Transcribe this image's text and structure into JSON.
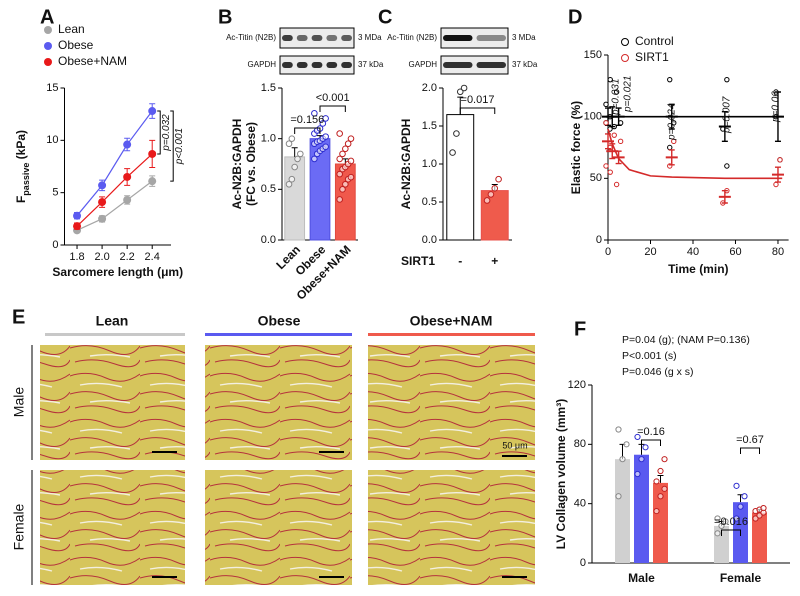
{
  "chart_data": [
    {
      "panel": "A",
      "type": "line",
      "xlabel": "Sarcomere length (μm)",
      "ylabel": "F",
      "ylabel_sub": "passive",
      "ylabel_unit": " (kPa)",
      "x": [
        1.8,
        2.0,
        2.2,
        2.4
      ],
      "xlim": [
        1.7,
        2.55
      ],
      "xticks": [
        1.8,
        {
          "value": 2,
          "label": "2.0"
        },
        2.2,
        2.4
      ],
      "ylim": [
        0,
        15
      ],
      "yticks": [
        0,
        5,
        10,
        15
      ],
      "series": [
        {
          "name": "Lean",
          "color": "#a6a6a6",
          "values": [
            1.4,
            2.5,
            4.3,
            6.1
          ],
          "errors": [
            0.2,
            0.3,
            0.4,
            0.5
          ]
        },
        {
          "name": "Obese",
          "color": "#5b5bf0",
          "values": [
            2.8,
            5.7,
            9.6,
            12.8
          ],
          "errors": [
            0.3,
            0.5,
            0.6,
            0.7
          ]
        },
        {
          "name": "Obese+NAM",
          "color": "#e8191a",
          "values": [
            1.8,
            4.1,
            6.5,
            8.7
          ],
          "errors": [
            0.3,
            0.5,
            0.8,
            1.3
          ]
        }
      ],
      "annotations": [
        "p=0.032",
        "p<0.001"
      ]
    },
    {
      "panel": "B",
      "type": "bar",
      "ylabel": "Ac-N2B:GAPDH",
      "ylabel2": "(FC vs. Obese)",
      "blot": {
        "band_label": "Ac-Titin (N2B)",
        "band_size": "3 MDa",
        "loading_label": "GAPDH",
        "loading_size": "37 kDa"
      },
      "categories": [
        "Lean",
        "Obese",
        "Obese+NAM"
      ],
      "values": [
        0.82,
        1.0,
        0.75
      ],
      "errors": [
        0.09,
        0.03,
        0.05
      ],
      "colors": [
        "#d9d9d9",
        "#6b6bf5",
        "#f0594c"
      ],
      "edge_colors": [
        "#bdbdbd",
        "#5050e0",
        "#e04a3e"
      ],
      "point_colors": [
        "#888888",
        "#2e2ed0",
        "#c02020"
      ],
      "points": [
        [
          0.55,
          0.6,
          0.72,
          0.8,
          0.85,
          0.95,
          1.0
        ],
        [
          0.8,
          0.85,
          0.88,
          0.9,
          0.92,
          0.95,
          0.97,
          0.98,
          1.0,
          1.02,
          1.05,
          1.08,
          1.1,
          1.15,
          1.2,
          1.25
        ],
        [
          0.4,
          0.5,
          0.55,
          0.6,
          0.62,
          0.65,
          0.7,
          0.72,
          0.75,
          0.78,
          0.8,
          0.85,
          0.9,
          0.95,
          1.0,
          1.05
        ]
      ],
      "ylim": [
        0,
        1.5
      ],
      "yticks": [
        {
          "value": 0,
          "label": "0.0"
        },
        0.5,
        {
          "value": 1,
          "label": "1.0"
        },
        1.5
      ],
      "annotations": [
        "=0.156",
        "<0.001"
      ]
    },
    {
      "panel": "C",
      "type": "bar",
      "ylabel": "Ac-N2B:GAPDH",
      "xlabel": "SIRT1",
      "blot": {
        "band_label": "Ac-Titin (N2B)",
        "band_size": "3 MDa",
        "loading_label": "GAPDH",
        "loading_size": "37 kDa"
      },
      "categories": [
        "-",
        "+"
      ],
      "values": [
        1.65,
        0.65
      ],
      "errors": [
        0.23,
        0.08
      ],
      "colors": [
        "#ffffff",
        "#ef5b4c"
      ],
      "edge_colors": [
        "#000000",
        "#e8504a"
      ],
      "point_colors": [
        "#333333",
        "#c02020"
      ],
      "points": [
        [
          1.15,
          1.4,
          1.95,
          2.0
        ],
        [
          0.52,
          0.6,
          0.68,
          0.8
        ]
      ],
      "ylim": [
        0,
        2
      ],
      "yticks": [
        {
          "value": 0,
          "label": "0.0"
        },
        0.5,
        {
          "value": 1,
          "label": "1.0"
        },
        1.5,
        {
          "value": 2,
          "label": "2.0"
        }
      ],
      "annotations": [
        "=0.017"
      ]
    },
    {
      "panel": "D",
      "type": "scatter",
      "xlabel": "Time (min)",
      "ylabel": "Elastic force (%)",
      "xlim": [
        0,
        85
      ],
      "xticks": [
        0,
        20,
        40,
        60,
        80
      ],
      "ylim": [
        0,
        150
      ],
      "yticks": [
        0,
        50,
        100,
        150
      ],
      "series": [
        {
          "name": "Control",
          "color": "#000000",
          "x": [
            0,
            2,
            5,
            30,
            55,
            80
          ],
          "values": [
            100,
            100,
            100,
            100,
            92,
            100
          ],
          "errors": [
            7,
            8,
            7,
            10,
            12,
            20
          ],
          "fit": {
            "x": [
              0,
              82
            ],
            "values": [
              100,
              100
            ]
          },
          "points": {
            "x": [
              0,
              0,
              0,
              0,
              2,
              2,
              5,
              5,
              30,
              30,
              30,
              55,
              55,
              55,
              80,
              80,
              80
            ],
            "values": [
              110,
              100,
              95,
              90,
              130,
              92,
              120,
              95,
              130,
              95,
              75,
              130,
              90,
              60,
              100,
              65,
              120
            ]
          }
        },
        {
          "name": "SIRT1",
          "color": "#d42a2a",
          "x": [
            0,
            2,
            5,
            30,
            55,
            80
          ],
          "values": [
            80,
            72,
            67,
            67,
            35,
            53
          ],
          "errors": [
            6,
            6,
            5,
            6,
            5,
            6
          ],
          "fit": {
            "x": [
              0,
              2,
              5,
              10,
              20,
              30,
              55,
              82
            ],
            "values": [
              90,
              78,
              66,
              57,
              52,
              51,
              50,
              50
            ]
          },
          "points": {
            "x": [
              0,
              0,
              0,
              2,
              2,
              5,
              5,
              30,
              30,
              55,
              55,
              80,
              80
            ],
            "values": [
              95,
              75,
              60,
              85,
              55,
              80,
              45,
              80,
              60,
              40,
              30,
              65,
              45
            ]
          }
        }
      ],
      "annotations": [
        "p=0.031",
        "p=0.021",
        "p=0.024",
        "p=0.007",
        "p=0.06"
      ]
    },
    {
      "panel": "F",
      "type": "grouped_bar",
      "ylabel": "LV Collagen volume (mm³)",
      "categories": [
        "Male",
        "Female"
      ],
      "ylim": [
        0,
        120
      ],
      "yticks": [
        0,
        40,
        80,
        120
      ],
      "series": [
        {
          "name": "Lean",
          "color": "#d0d0d0",
          "point_color": "#888888",
          "values": [
            70,
            25
          ],
          "errors": [
            10,
            3
          ],
          "points": [
            [
              45,
              70,
              80,
              90
            ],
            [
              20,
              25,
              28,
              30
            ]
          ]
        },
        {
          "name": "Obese",
          "color": "#5a5af0",
          "point_color": "#2e2ed0",
          "values": [
            73,
            41
          ],
          "errors": [
            7,
            5
          ],
          "points": [
            [
              60,
              70,
              78,
              85
            ],
            [
              30,
              38,
              45,
              52
            ]
          ]
        },
        {
          "name": "Obese+NAM",
          "color": "#ef5a4c",
          "point_color": "#c02020",
          "values": [
            54,
            34
          ],
          "errors": [
            5,
            2
          ],
          "points": [
            [
              35,
              45,
              50,
              55,
              62,
              70
            ],
            [
              30,
              32,
              34,
              35,
              36,
              37
            ]
          ]
        }
      ],
      "stats": [
        "P=0.04 (g); (NAM P=0.136)",
        "P<0.001 (s)",
        "P=0.046 (g x s)"
      ],
      "annotations": [
        "=0.16",
        "=0.016",
        "=0.67"
      ]
    }
  ],
  "figure_e": {
    "panel": "E",
    "columns": [
      "Lean",
      "Obese",
      "Obese+NAM"
    ],
    "rows": [
      "Male",
      "Female"
    ],
    "scale_bar": "50 μm"
  }
}
